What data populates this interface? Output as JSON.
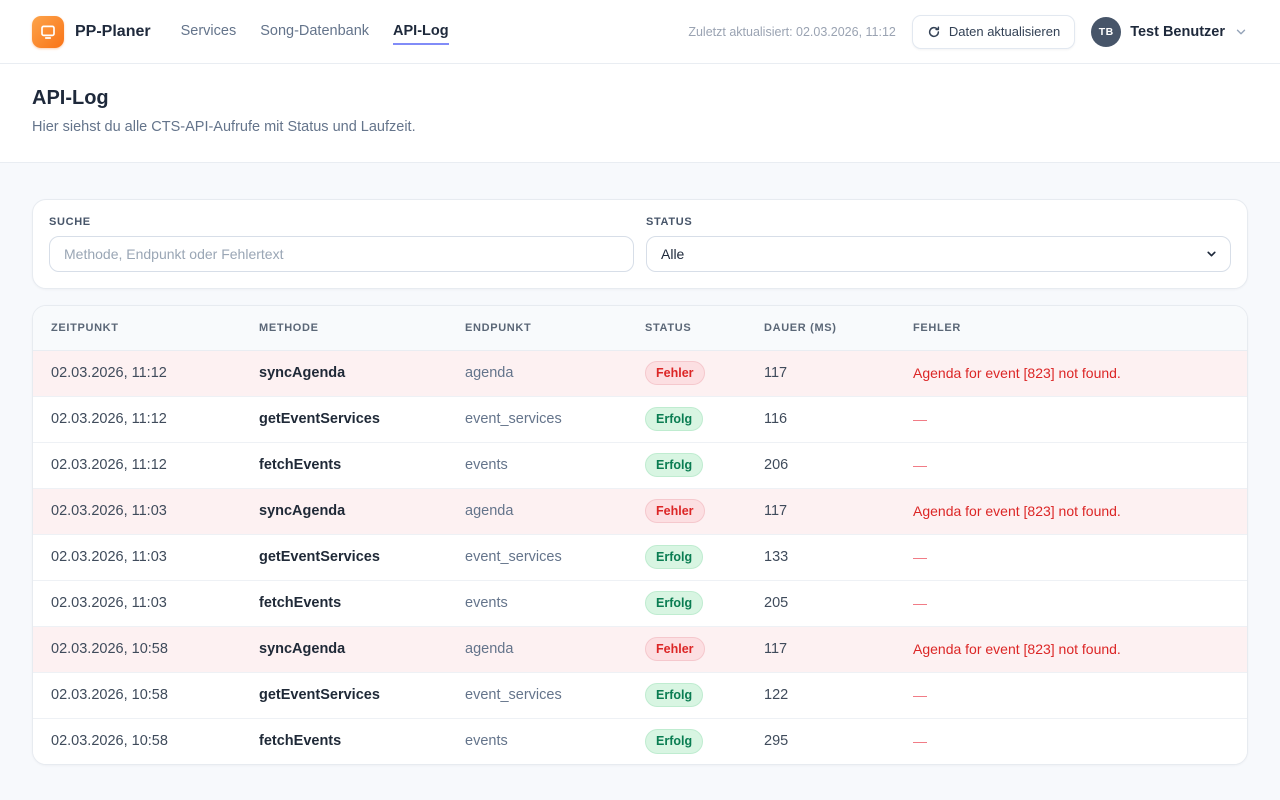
{
  "header": {
    "brand": "PP-Planer",
    "nav": [
      {
        "label": "Services",
        "active": false
      },
      {
        "label": "Song-Datenbank",
        "active": false
      },
      {
        "label": "API-Log",
        "active": true
      }
    ],
    "last_updated": "Zuletzt aktualisiert: 02.03.2026, 11:12",
    "refresh_label": "Daten aktualisieren",
    "user": {
      "initials": "TB",
      "name": "Test Benutzer"
    }
  },
  "page": {
    "title": "API-Log",
    "subtitle": "Hier siehst du alle CTS-API-Aufrufe mit Status und Laufzeit."
  },
  "filters": {
    "search_label": "SUCHE",
    "search_placeholder": "Methode, Endpunkt oder Fehlertext",
    "search_value": "",
    "status_label": "STATUS",
    "status_value": "Alle"
  },
  "table": {
    "columns": [
      "ZEITPUNKT",
      "METHODE",
      "ENDPUNKT",
      "STATUS",
      "DAUER (MS)",
      "FEHLER"
    ],
    "rows": [
      {
        "zeitpunkt": "02.03.2026, 11:12",
        "methode": "syncAgenda",
        "endpunkt": "agenda",
        "status": "Fehler",
        "status_kind": "error",
        "dauer": "117",
        "fehler": "Agenda for event [823] not found."
      },
      {
        "zeitpunkt": "02.03.2026, 11:12",
        "methode": "getEventServices",
        "endpunkt": "event_services",
        "status": "Erfolg",
        "status_kind": "success",
        "dauer": "116",
        "fehler": "—"
      },
      {
        "zeitpunkt": "02.03.2026, 11:12",
        "methode": "fetchEvents",
        "endpunkt": "events",
        "status": "Erfolg",
        "status_kind": "success",
        "dauer": "206",
        "fehler": "—"
      },
      {
        "zeitpunkt": "02.03.2026, 11:03",
        "methode": "syncAgenda",
        "endpunkt": "agenda",
        "status": "Fehler",
        "status_kind": "error",
        "dauer": "117",
        "fehler": "Agenda for event [823] not found."
      },
      {
        "zeitpunkt": "02.03.2026, 11:03",
        "methode": "getEventServices",
        "endpunkt": "event_services",
        "status": "Erfolg",
        "status_kind": "success",
        "dauer": "133",
        "fehler": "—"
      },
      {
        "zeitpunkt": "02.03.2026, 11:03",
        "methode": "fetchEvents",
        "endpunkt": "events",
        "status": "Erfolg",
        "status_kind": "success",
        "dauer": "205",
        "fehler": "—"
      },
      {
        "zeitpunkt": "02.03.2026, 10:58",
        "methode": "syncAgenda",
        "endpunkt": "agenda",
        "status": "Fehler",
        "status_kind": "error",
        "dauer": "117",
        "fehler": "Agenda for event [823] not found."
      },
      {
        "zeitpunkt": "02.03.2026, 10:58",
        "methode": "getEventServices",
        "endpunkt": "event_services",
        "status": "Erfolg",
        "status_kind": "success",
        "dauer": "122",
        "fehler": "—"
      },
      {
        "zeitpunkt": "02.03.2026, 10:58",
        "methode": "fetchEvents",
        "endpunkt": "events",
        "status": "Erfolg",
        "status_kind": "success",
        "dauer": "295",
        "fehler": "—"
      }
    ]
  },
  "colors": {
    "brand_orange": "#f97316",
    "nav_active_underline": "#818cf8",
    "error_text": "#dc2626",
    "error_badge_bg": "#fcdfe2",
    "error_row_bg": "#fdf1f2",
    "success_text": "#0a7d52",
    "success_badge_bg": "#d8f5e2",
    "avatar_bg": "#475569"
  }
}
